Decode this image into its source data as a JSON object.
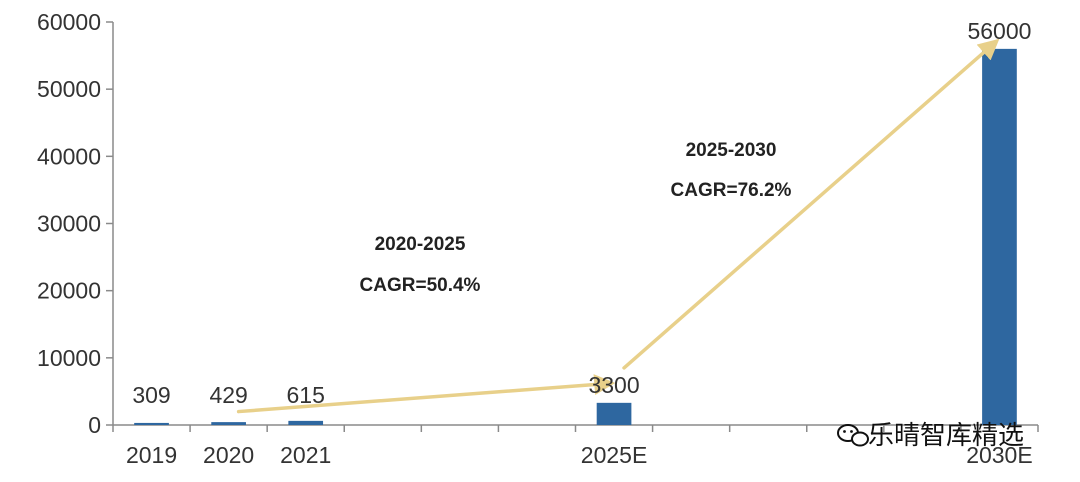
{
  "chart_data": {
    "type": "bar",
    "categories": [
      "2019",
      "2020",
      "2021",
      "",
      "",
      "",
      "2025E",
      "",
      "",
      "",
      "",
      "2030E"
    ],
    "values": [
      309,
      429,
      615,
      null,
      null,
      null,
      3300,
      null,
      null,
      null,
      null,
      56000
    ],
    "data_labels": [
      "309",
      "429",
      "615",
      "",
      "",
      "",
      "3300",
      "",
      "",
      "",
      "",
      "56000"
    ],
    "y_ticks": [
      "0",
      "10000",
      "20000",
      "30000",
      "40000",
      "50000",
      "60000"
    ],
    "ylim": [
      0,
      60000
    ],
    "title": "",
    "xlabel": "",
    "ylabel": "",
    "grid": false,
    "bar_color": "#2e67a0",
    "arrow_color": "#e8d08a",
    "annotations": [
      {
        "line1": "2020-2025",
        "line2": "CAGR=50.4%",
        "from": "2020",
        "from_value": 2000,
        "to": "2025E",
        "to_value": 6200
      },
      {
        "line1": "2025-2030",
        "line2": "CAGR=76.2%",
        "from": "2025E",
        "from_value": 8500,
        "to": "2030E",
        "to_value": 57000
      }
    ]
  },
  "watermark": {
    "icon": "wechat-icon",
    "text": "乐晴智库精选"
  }
}
